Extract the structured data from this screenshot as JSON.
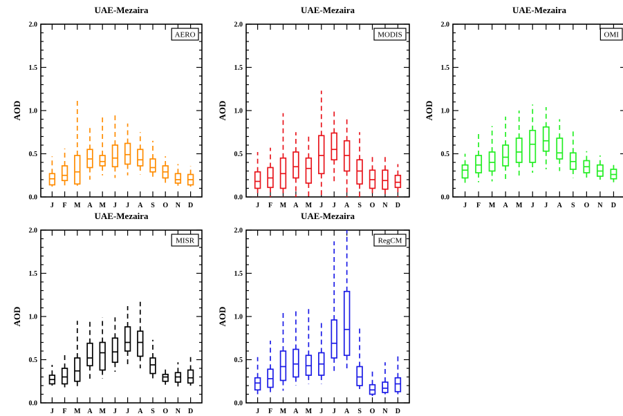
{
  "chart_data": [
    {
      "type": "boxplot",
      "title": "UAE-Mezaira",
      "series_label": "AERO",
      "ylabel": "AOD",
      "ylim": [
        0,
        2
      ],
      "yticks": [
        "0.0",
        "0.5",
        "1.0",
        "1.5",
        "2.0"
      ],
      "categories": [
        "J",
        "F",
        "M",
        "A",
        "M",
        "J",
        "J",
        "A",
        "S",
        "O",
        "N",
        "D"
      ],
      "color": "#ff8c00",
      "boxes": [
        {
          "min": 0.12,
          "q1": 0.14,
          "median": 0.21,
          "q3": 0.27,
          "max": 0.47
        },
        {
          "min": 0.13,
          "q1": 0.19,
          "median": 0.25,
          "q3": 0.36,
          "max": 0.56
        },
        {
          "min": 0.13,
          "q1": 0.15,
          "median": 0.29,
          "q3": 0.48,
          "max": 1.15
        },
        {
          "min": 0.2,
          "q1": 0.34,
          "median": 0.44,
          "q3": 0.55,
          "max": 0.82
        },
        {
          "min": 0.25,
          "q1": 0.36,
          "median": 0.41,
          "q3": 0.48,
          "max": 0.95
        },
        {
          "min": 0.22,
          "q1": 0.35,
          "median": 0.45,
          "q3": 0.6,
          "max": 0.95
        },
        {
          "min": 0.25,
          "q1": 0.38,
          "median": 0.49,
          "q3": 0.62,
          "max": 0.85
        },
        {
          "min": 0.26,
          "q1": 0.36,
          "median": 0.43,
          "q3": 0.55,
          "max": 0.75
        },
        {
          "min": 0.22,
          "q1": 0.29,
          "median": 0.34,
          "q3": 0.44,
          "max": 0.65
        },
        {
          "min": 0.15,
          "q1": 0.22,
          "median": 0.29,
          "q3": 0.36,
          "max": 0.47
        },
        {
          "min": 0.13,
          "q1": 0.16,
          "median": 0.2,
          "q3": 0.27,
          "max": 0.38
        },
        {
          "min": 0.12,
          "q1": 0.14,
          "median": 0.2,
          "q3": 0.26,
          "max": 0.36
        }
      ]
    },
    {
      "type": "boxplot",
      "title": "UAE-Mezaira",
      "series_label": "MODIS",
      "ylabel": "AOD",
      "ylim": [
        0,
        2
      ],
      "yticks": [
        "0.0",
        "0.5",
        "1.0",
        "1.5",
        "2.0"
      ],
      "categories": [
        "J",
        "F",
        "M",
        "A",
        "M",
        "J",
        "J",
        "A",
        "S",
        "O",
        "N",
        "D"
      ],
      "color": "#e8141b",
      "boxes": [
        {
          "min": 0.0,
          "q1": 0.1,
          "median": 0.18,
          "q3": 0.29,
          "max": 0.52
        },
        {
          "min": 0.0,
          "q1": 0.11,
          "median": 0.22,
          "q3": 0.34,
          "max": 0.57
        },
        {
          "min": 0.0,
          "q1": 0.1,
          "median": 0.27,
          "q3": 0.45,
          "max": 0.97
        },
        {
          "min": 0.0,
          "q1": 0.22,
          "median": 0.35,
          "q3": 0.52,
          "max": 0.75
        },
        {
          "min": 0.0,
          "q1": 0.16,
          "median": 0.33,
          "q3": 0.45,
          "max": 0.73
        },
        {
          "min": 0.0,
          "q1": 0.27,
          "median": 0.48,
          "q3": 0.71,
          "max": 1.23
        },
        {
          "min": 0.18,
          "q1": 0.43,
          "median": 0.55,
          "q3": 0.74,
          "max": 1.0
        },
        {
          "min": 0.0,
          "q1": 0.3,
          "median": 0.48,
          "q3": 0.65,
          "max": 0.9
        },
        {
          "min": 0.0,
          "q1": 0.15,
          "median": 0.3,
          "q3": 0.43,
          "max": 0.75
        },
        {
          "min": 0.0,
          "q1": 0.1,
          "median": 0.2,
          "q3": 0.31,
          "max": 0.47
        },
        {
          "min": 0.0,
          "q1": 0.09,
          "median": 0.19,
          "q3": 0.31,
          "max": 0.5
        },
        {
          "min": 0.0,
          "q1": 0.11,
          "median": 0.17,
          "q3": 0.25,
          "max": 0.38
        }
      ]
    },
    {
      "type": "boxplot",
      "title": "UAE-Mezaira",
      "series_label": "OMI",
      "ylabel": "AOD",
      "ylim": [
        0,
        2
      ],
      "yticks": [
        "0.0",
        "0.5",
        "1.0",
        "1.5",
        "2.0"
      ],
      "categories": [
        "J",
        "F",
        "M",
        "A",
        "M",
        "J",
        "J",
        "A",
        "S",
        "O",
        "N",
        "D"
      ],
      "color": "#22ee22",
      "boxes": [
        {
          "min": 0.15,
          "q1": 0.22,
          "median": 0.31,
          "q3": 0.37,
          "max": 0.5
        },
        {
          "min": 0.17,
          "q1": 0.28,
          "median": 0.37,
          "q3": 0.48,
          "max": 0.75
        },
        {
          "min": 0.18,
          "q1": 0.3,
          "median": 0.4,
          "q3": 0.52,
          "max": 0.82
        },
        {
          "min": 0.2,
          "q1": 0.36,
          "median": 0.46,
          "q3": 0.6,
          "max": 0.93
        },
        {
          "min": 0.22,
          "q1": 0.4,
          "median": 0.52,
          "q3": 0.68,
          "max": 1.0
        },
        {
          "min": 0.28,
          "q1": 0.4,
          "median": 0.61,
          "q3": 0.77,
          "max": 1.07
        },
        {
          "min": 0.32,
          "q1": 0.53,
          "median": 0.65,
          "q3": 0.81,
          "max": 1.04
        },
        {
          "min": 0.3,
          "q1": 0.44,
          "median": 0.51,
          "q3": 0.68,
          "max": 0.9
        },
        {
          "min": 0.22,
          "q1": 0.32,
          "median": 0.41,
          "q3": 0.51,
          "max": 0.79
        },
        {
          "min": 0.21,
          "q1": 0.28,
          "median": 0.35,
          "q3": 0.42,
          "max": 0.53
        },
        {
          "min": 0.2,
          "q1": 0.24,
          "median": 0.3,
          "q3": 0.37,
          "max": 0.48
        },
        {
          "min": 0.17,
          "q1": 0.21,
          "median": 0.26,
          "q3": 0.32,
          "max": 0.37
        }
      ]
    },
    {
      "type": "boxplot",
      "title": "UAE-Mezaira",
      "series_label": "MISR",
      "ylabel": "AOD",
      "ylim": [
        0,
        2
      ],
      "yticks": [
        "0.0",
        "0.5",
        "1.0",
        "1.5",
        "2.0"
      ],
      "categories": [
        "J",
        "F",
        "M",
        "A",
        "M",
        "J",
        "J",
        "A",
        "S",
        "O",
        "N",
        "D"
      ],
      "color": "#000000",
      "boxes": [
        {
          "min": 0.2,
          "q1": 0.22,
          "median": 0.27,
          "q3": 0.32,
          "max": 0.44
        },
        {
          "min": 0.18,
          "q1": 0.22,
          "median": 0.3,
          "q3": 0.4,
          "max": 0.56
        },
        {
          "min": 0.18,
          "q1": 0.25,
          "median": 0.37,
          "q3": 0.52,
          "max": 0.95
        },
        {
          "min": 0.28,
          "q1": 0.43,
          "median": 0.52,
          "q3": 0.69,
          "max": 0.94
        },
        {
          "min": 0.28,
          "q1": 0.38,
          "median": 0.58,
          "q3": 0.7,
          "max": 0.99
        },
        {
          "min": 0.36,
          "q1": 0.47,
          "median": 0.59,
          "q3": 0.75,
          "max": 0.99
        },
        {
          "min": 0.41,
          "q1": 0.6,
          "median": 0.7,
          "q3": 0.88,
          "max": 1.12
        },
        {
          "min": 0.4,
          "q1": 0.54,
          "median": 0.7,
          "q3": 0.83,
          "max": 1.17
        },
        {
          "min": 0.28,
          "q1": 0.34,
          "median": 0.44,
          "q3": 0.52,
          "max": 0.73
        },
        {
          "min": 0.21,
          "q1": 0.25,
          "median": 0.3,
          "q3": 0.33,
          "max": 0.4
        },
        {
          "min": 0.19,
          "q1": 0.24,
          "median": 0.3,
          "q3": 0.35,
          "max": 0.47
        },
        {
          "min": 0.2,
          "q1": 0.23,
          "median": 0.29,
          "q3": 0.38,
          "max": 0.53
        }
      ]
    },
    {
      "type": "boxplot",
      "title": "UAE-Mezaira",
      "series_label": "RegCM",
      "ylabel": "AOD",
      "ylim": [
        0,
        2
      ],
      "yticks": [
        "0.0",
        "0.5",
        "1.0",
        "1.5",
        "2.0"
      ],
      "categories": [
        "J",
        "F",
        "M",
        "A",
        "M",
        "J",
        "J",
        "A",
        "S",
        "O",
        "N",
        "D"
      ],
      "color": "#1a1ae6",
      "boxes": [
        {
          "min": 0.1,
          "q1": 0.15,
          "median": 0.23,
          "q3": 0.29,
          "max": 0.53
        },
        {
          "min": 0.12,
          "q1": 0.18,
          "median": 0.28,
          "q3": 0.39,
          "max": 0.72
        },
        {
          "min": 0.14,
          "q1": 0.26,
          "median": 0.42,
          "q3": 0.6,
          "max": 1.05
        },
        {
          "min": 0.2,
          "q1": 0.3,
          "median": 0.45,
          "q3": 0.62,
          "max": 1.06
        },
        {
          "min": 0.22,
          "q1": 0.32,
          "median": 0.43,
          "q3": 0.55,
          "max": 1.1
        },
        {
          "min": 0.22,
          "q1": 0.32,
          "median": 0.45,
          "q3": 0.58,
          "max": 0.93
        },
        {
          "min": 0.37,
          "q1": 0.52,
          "median": 0.69,
          "q3": 0.96,
          "max": 1.87
        },
        {
          "min": 0.4,
          "q1": 0.55,
          "median": 0.85,
          "q3": 1.29,
          "max": 2.0
        },
        {
          "min": 0.16,
          "q1": 0.2,
          "median": 0.3,
          "q3": 0.42,
          "max": 0.88
        },
        {
          "min": 0.08,
          "q1": 0.1,
          "median": 0.15,
          "q3": 0.21,
          "max": 0.38
        },
        {
          "min": 0.1,
          "q1": 0.12,
          "median": 0.17,
          "q3": 0.24,
          "max": 0.47
        },
        {
          "min": 0.1,
          "q1": 0.13,
          "median": 0.22,
          "q3": 0.29,
          "max": 0.54
        }
      ]
    }
  ]
}
